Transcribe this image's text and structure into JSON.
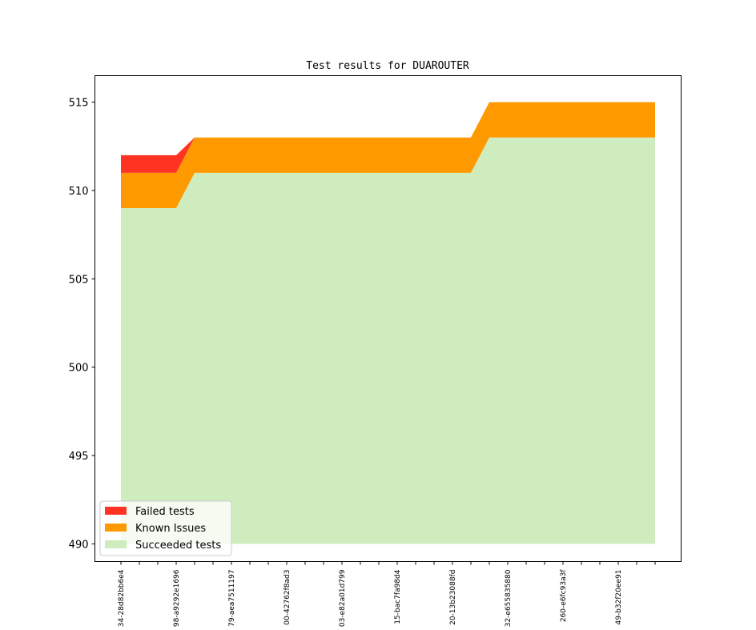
{
  "chart_data": {
    "type": "area",
    "title": "Test results for DUAROUTER",
    "xlabel": "",
    "ylabel": "",
    "ylim": [
      489,
      516.5
    ],
    "yticks": [
      490,
      495,
      500,
      505,
      510,
      515
    ],
    "x": [
      0,
      1,
      2,
      3,
      4,
      5,
      6,
      7,
      8,
      9,
      10,
      11,
      12,
      13,
      14,
      15,
      16,
      17,
      18,
      19,
      20,
      21,
      22,
      23,
      24,
      25,
      26,
      27,
      28,
      29
    ],
    "xtick_labels": [
      {
        "x": 0,
        "label": "34-28d82bb6e4"
      },
      {
        "x": 3,
        "label": "98-a9292e1696"
      },
      {
        "x": 6,
        "label": "79-aea7511197"
      },
      {
        "x": 9,
        "label": "00-42762f8ad3"
      },
      {
        "x": 12,
        "label": "03-e82a01d799"
      },
      {
        "x": 15,
        "label": "15-bac7fa98d4"
      },
      {
        "x": 18,
        "label": "20-13b23088fd"
      },
      {
        "x": 21,
        "label": "32-e655835880"
      },
      {
        "x": 24,
        "label": "260-e6fc93a3f"
      },
      {
        "x": 27,
        "label": "49-b32f20ee91"
      }
    ],
    "baseline": 490,
    "series": [
      {
        "name": "Succeeded tests",
        "color": "#cfecbe",
        "values": [
          509,
          509,
          509,
          509,
          511,
          511,
          511,
          511,
          511,
          511,
          511,
          511,
          511,
          511,
          511,
          511,
          511,
          511,
          511,
          511,
          513,
          513,
          513,
          513,
          513,
          513,
          513,
          513,
          513,
          513
        ]
      },
      {
        "name": "Known Issues",
        "color": "#ff9900",
        "values": [
          2,
          2,
          2,
          2,
          2,
          2,
          2,
          2,
          2,
          2,
          2,
          2,
          2,
          2,
          2,
          2,
          2,
          2,
          2,
          2,
          2,
          2,
          2,
          2,
          2,
          2,
          2,
          2,
          2,
          2
        ]
      },
      {
        "name": "Failed tests",
        "color": "#ff3322",
        "values": [
          1,
          1,
          1,
          1,
          0,
          0,
          0,
          0,
          0,
          0,
          0,
          0,
          0,
          0,
          0,
          0,
          0,
          0,
          0,
          0,
          0,
          0,
          0,
          0,
          0,
          0,
          0,
          0,
          0,
          0
        ]
      }
    ],
    "legend_order": [
      "Failed tests",
      "Known Issues",
      "Succeeded tests"
    ],
    "legend_position": "lower-left",
    "grid": false
  }
}
